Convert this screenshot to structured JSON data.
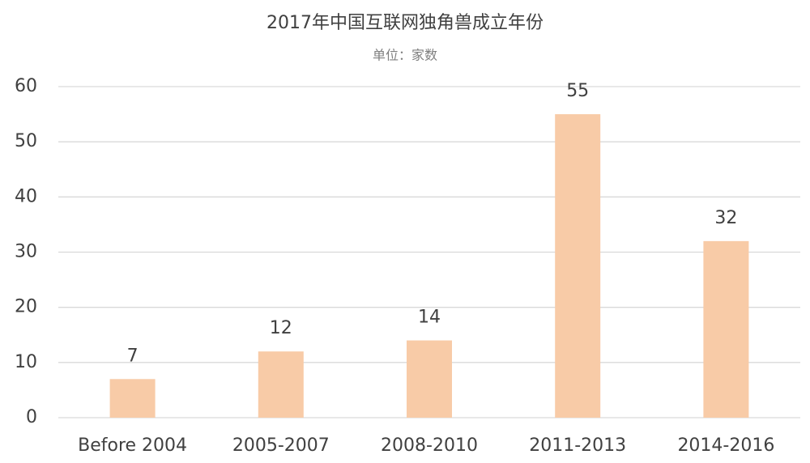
{
  "chart_data": {
    "type": "bar",
    "title": "2017年中国互联网独角兽成立年份",
    "subtitle": "单位：家数",
    "categories": [
      "Before 2004",
      "2005-2007",
      "2008-2010",
      "2011-2013",
      "2014-2016"
    ],
    "values": [
      7,
      12,
      14,
      55,
      32
    ],
    "color": "#f8cba7",
    "ylim": [
      0,
      60
    ],
    "yticks": [
      0,
      10,
      20,
      30,
      40,
      50,
      60
    ],
    "grid": true,
    "data_labels": true
  }
}
